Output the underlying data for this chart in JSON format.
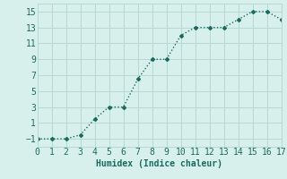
{
  "x": [
    0,
    1,
    2,
    3,
    4,
    5,
    6,
    7,
    8,
    9,
    10,
    11,
    12,
    13,
    14,
    15,
    16,
    17
  ],
  "y": [
    -1,
    -1,
    -1,
    -0.5,
    1.5,
    3,
    3,
    6.5,
    9,
    9,
    12,
    13,
    13,
    13,
    14,
    15,
    15,
    14
  ],
  "line_color": "#1a6b5e",
  "bg_color": "#d8f0ec",
  "grid_color": "#b8d8d4",
  "xlabel": "Humidex (Indice chaleur)",
  "xlabel_fontsize": 7,
  "tick_fontsize": 7,
  "xlim": [
    0,
    17
  ],
  "ylim": [
    -2,
    16
  ],
  "yticks": [
    -1,
    1,
    3,
    5,
    7,
    9,
    11,
    13,
    15
  ],
  "xticks": [
    0,
    1,
    2,
    3,
    4,
    5,
    6,
    7,
    8,
    9,
    10,
    11,
    12,
    13,
    14,
    15,
    16,
    17
  ],
  "marker": "D",
  "marker_size": 2,
  "line_width": 1.0
}
